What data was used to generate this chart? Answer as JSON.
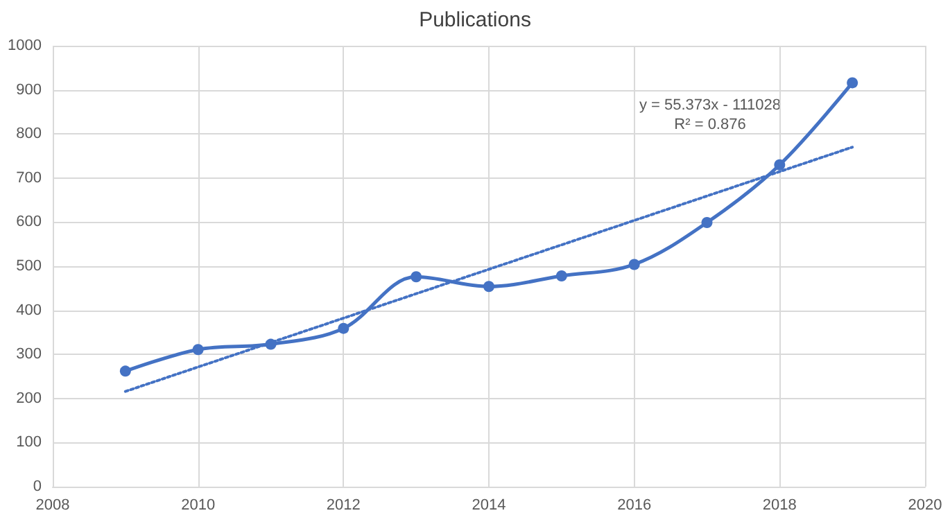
{
  "chart_data": {
    "type": "line",
    "title": "Publications",
    "x": [
      2009,
      2010,
      2011,
      2012,
      2013,
      2014,
      2015,
      2016,
      2017,
      2018,
      2019
    ],
    "series": [
      {
        "color": "#4472c4",
        "values": [
          262,
          311,
          323,
          359,
          476,
          454,
          478,
          504,
          599,
          730,
          916
        ],
        "marker": "circle",
        "line_style": "solid"
      },
      {
        "type": "line",
        "color": "#4472c4",
        "x": [
          2009,
          2019
        ],
        "values": [
          216,
          770
        ],
        "marker": "none",
        "line_style": "dotted"
      }
    ],
    "annotations": [
      "y = 55.373x - 111028",
      "R² = 0.876"
    ],
    "xlim": [
      2008,
      2020
    ],
    "xticks": [
      2008,
      2010,
      2012,
      2014,
      2016,
      2018,
      2020
    ],
    "ylim": [
      0,
      1000
    ],
    "yticks": [
      0,
      100,
      200,
      300,
      400,
      500,
      600,
      700,
      800,
      900,
      1000
    ],
    "grid": true
  }
}
